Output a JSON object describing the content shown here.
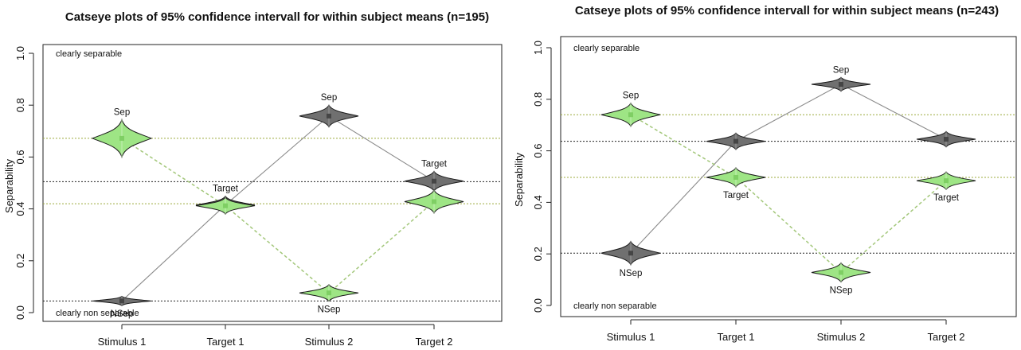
{
  "colors": {
    "grey_fill": "#707070",
    "grey_dark": "#454545",
    "green_fill": "#9ee585",
    "green_dark": "#5aa03a",
    "green_line": "#a3c77a",
    "green_hline": "#9cab3e",
    "grey_line": "#8a8a8a",
    "black_hline": "#222222"
  },
  "chart_data": [
    {
      "type": "catseye",
      "title": "Catseye plots of 95% confidence intervall for within subject means (n=195)",
      "xlabel": "",
      "ylabel": "Separability",
      "ylim": [
        0,
        1
      ],
      "yticks": [
        "0.0",
        "0.2",
        "0.4",
        "0.6",
        "0.8",
        "1.0"
      ],
      "categories": [
        "Stimulus 1",
        "Target 1",
        "Stimulus 2",
        "Target 2"
      ],
      "annotations": {
        "top": "clearly separable",
        "bottom": "clearly non separable"
      },
      "reference_lines": [
        {
          "y": 0.672,
          "color": "green"
        },
        {
          "y": 0.42,
          "color": "green"
        },
        {
          "y": 0.505,
          "color": "black"
        },
        {
          "y": 0.045,
          "color": "black"
        }
      ],
      "series": [
        {
          "color": "grey",
          "values": [
            0.045,
            0.415,
            0.758,
            0.507
          ],
          "half_widths": [
            0.018,
            0.034,
            0.042,
            0.038
          ],
          "labels": [
            "NSep",
            "Target",
            "Sep",
            "Target"
          ]
        },
        {
          "color": "green",
          "values": [
            0.672,
            0.412,
            0.076,
            0.428
          ],
          "half_widths": [
            0.072,
            0.032,
            0.032,
            0.044
          ],
          "labels": [
            "Sep",
            "",
            "NSep",
            ""
          ]
        }
      ]
    },
    {
      "type": "catseye",
      "title": "Catseye plots of 95% confidence intervall for within subject means (n=243)",
      "xlabel": "",
      "ylabel": "Separability",
      "ylim": [
        0,
        1
      ],
      "yticks": [
        "0.0",
        "0.2",
        "0.4",
        "0.6",
        "0.8",
        "1.0"
      ],
      "categories": [
        "Stimulus 1",
        "Target 1",
        "Stimulus 2",
        "Target 2"
      ],
      "annotations": {
        "top": "clearly separable",
        "bottom": "clearly non separable"
      },
      "reference_lines": [
        {
          "y": 0.74,
          "color": "green"
        },
        {
          "y": 0.497,
          "color": "green"
        },
        {
          "y": 0.637,
          "color": "black"
        },
        {
          "y": 0.203,
          "color": "black"
        }
      ],
      "series": [
        {
          "color": "grey",
          "values": [
            0.203,
            0.637,
            0.858,
            0.645
          ],
          "half_widths": [
            0.045,
            0.032,
            0.027,
            0.03
          ],
          "labels": [
            "NSep",
            "",
            "Sep",
            ""
          ]
        },
        {
          "color": "green",
          "values": [
            0.74,
            0.497,
            0.128,
            0.484
          ],
          "half_widths": [
            0.045,
            0.037,
            0.037,
            0.034
          ],
          "labels": [
            "Sep",
            "Target",
            "NSep",
            "Target"
          ]
        }
      ]
    }
  ]
}
